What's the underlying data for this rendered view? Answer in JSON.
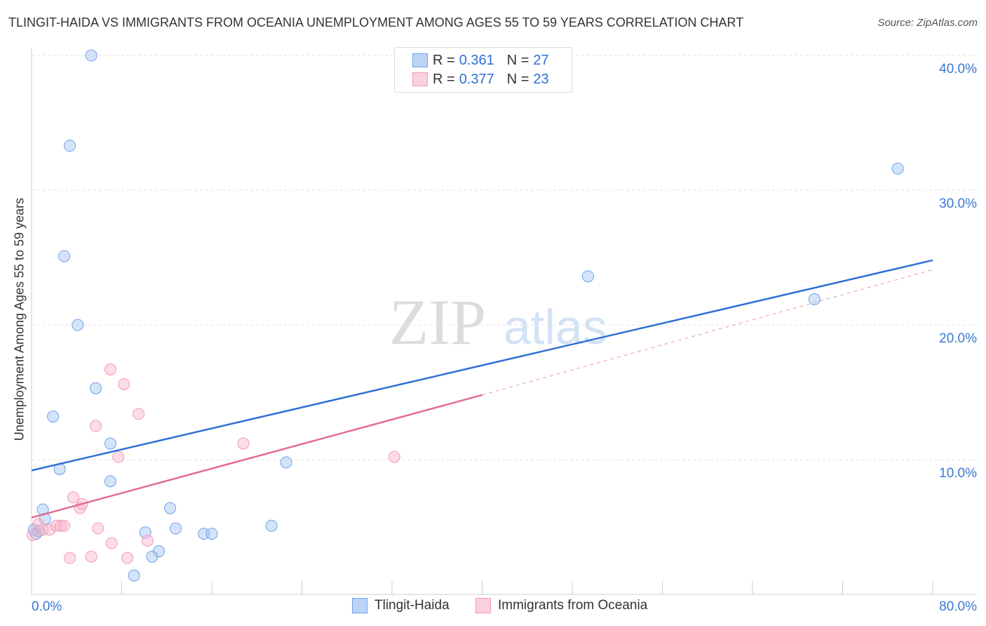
{
  "title": "TLINGIT-HAIDA VS IMMIGRANTS FROM OCEANIA UNEMPLOYMENT AMONG AGES 55 TO 59 YEARS CORRELATION CHART",
  "source": "Source: ZipAtlas.com",
  "watermark": "ZIPatlas",
  "chart_data": {
    "type": "scatter",
    "xlabel": "",
    "ylabel": "Unemployment Among Ages 55 to 59 years",
    "xlim": [
      0,
      80
    ],
    "ylim": [
      0,
      40
    ],
    "x_tick_labels": [
      "0.0%",
      "80.0%"
    ],
    "y_ticks": [
      10,
      20,
      30,
      40
    ],
    "y_tick_labels": [
      "10.0%",
      "20.0%",
      "30.0%",
      "40.0%"
    ],
    "grid": true,
    "legend_position": "top-center",
    "series": [
      {
        "name": "Tlingit-Haida",
        "color": "#6fa3e8",
        "line_color": "#2f6fd6",
        "R": "0.361",
        "N": "27",
        "trend": [
          [
            0,
            9.2
          ],
          [
            80,
            24.8
          ]
        ],
        "points": [
          [
            5.3,
            40.0
          ],
          [
            3.4,
            33.3
          ],
          [
            2.9,
            25.1
          ],
          [
            4.1,
            20.0
          ],
          [
            5.7,
            15.3
          ],
          [
            1.9,
            13.2
          ],
          [
            7.0,
            11.2
          ],
          [
            2.5,
            9.3
          ],
          [
            7.0,
            8.4
          ],
          [
            1.0,
            6.3
          ],
          [
            1.2,
            5.6
          ],
          [
            0.6,
            4.7
          ],
          [
            0.4,
            4.5
          ],
          [
            0.2,
            4.8
          ],
          [
            10.1,
            4.6
          ],
          [
            12.3,
            6.4
          ],
          [
            12.8,
            4.9
          ],
          [
            15.3,
            4.5
          ],
          [
            16.0,
            4.5
          ],
          [
            11.3,
            3.2
          ],
          [
            10.7,
            2.8
          ],
          [
            9.1,
            1.4
          ],
          [
            21.3,
            5.1
          ],
          [
            22.6,
            9.8
          ],
          [
            49.4,
            23.6
          ],
          [
            69.5,
            21.9
          ],
          [
            76.9,
            31.6
          ]
        ]
      },
      {
        "name": "Immigrants from Oceania",
        "color": "#f39ab8",
        "line_color": "#e36a95",
        "R": "0.377",
        "N": "23",
        "trend": [
          [
            0,
            5.7
          ],
          [
            40,
            14.8
          ]
        ],
        "trend_dashed": [
          [
            40,
            14.8
          ],
          [
            80,
            24.1
          ]
        ],
        "points": [
          [
            0.1,
            4.4
          ],
          [
            0.6,
            5.2
          ],
          [
            1.0,
            4.8
          ],
          [
            1.6,
            4.8
          ],
          [
            2.2,
            5.1
          ],
          [
            2.6,
            5.1
          ],
          [
            2.9,
            5.1
          ],
          [
            3.7,
            7.2
          ],
          [
            4.3,
            6.4
          ],
          [
            4.5,
            6.7
          ],
          [
            5.7,
            12.5
          ],
          [
            5.9,
            4.9
          ],
          [
            7.0,
            16.7
          ],
          [
            7.7,
            10.2
          ],
          [
            8.2,
            15.6
          ],
          [
            9.5,
            13.4
          ],
          [
            10.3,
            4.0
          ],
          [
            7.1,
            3.8
          ],
          [
            5.3,
            2.8
          ],
          [
            3.4,
            2.7
          ],
          [
            8.5,
            2.7
          ],
          [
            18.8,
            11.2
          ],
          [
            32.2,
            10.2
          ]
        ]
      }
    ]
  },
  "legend": {
    "r_label": "R =",
    "n_label": "N ="
  }
}
